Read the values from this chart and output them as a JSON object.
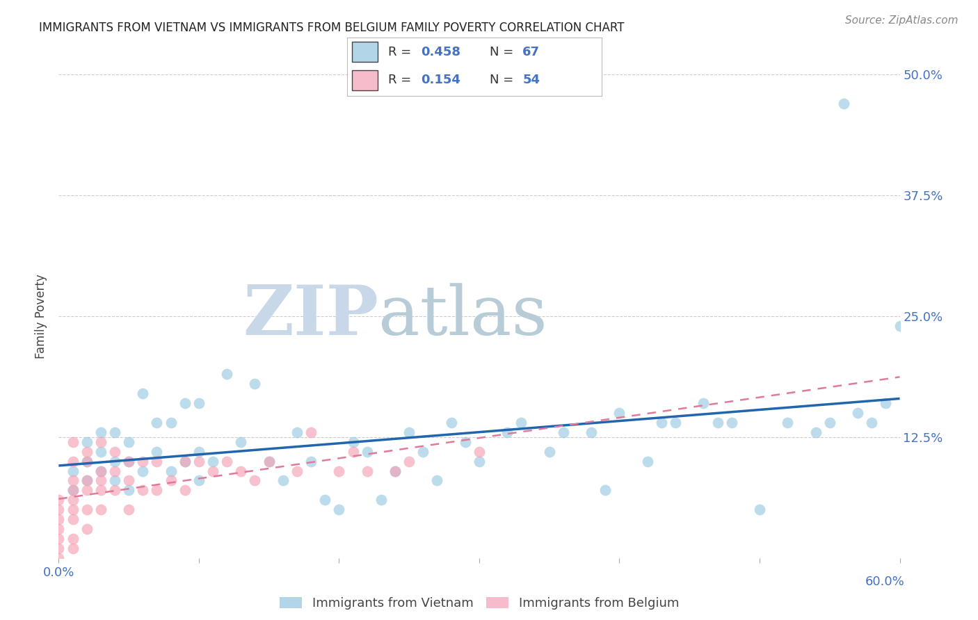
{
  "title": "IMMIGRANTS FROM VIETNAM VS IMMIGRANTS FROM BELGIUM FAMILY POVERTY CORRELATION CHART",
  "source": "Source: ZipAtlas.com",
  "ylabel": "Family Poverty",
  "xlim": [
    0.0,
    0.6
  ],
  "ylim": [
    0.0,
    0.5
  ],
  "yticks": [
    0.0,
    0.125,
    0.25,
    0.375,
    0.5
  ],
  "ytick_labels": [
    "",
    "12.5%",
    "25.0%",
    "37.5%",
    "50.0%"
  ],
  "xticks": [
    0.0,
    0.1,
    0.2,
    0.3,
    0.4,
    0.5,
    0.6
  ],
  "xtick_labels": [
    "0.0%",
    "",
    "",
    "",
    "",
    "",
    "60.0%"
  ],
  "vietnam_color": "#92c5de",
  "belgium_color": "#f4a0b5",
  "vietnam_R": "0.458",
  "vietnam_N": "67",
  "belgium_R": "0.154",
  "belgium_N": "54",
  "legend_label_vietnam": "Immigrants from Vietnam",
  "legend_label_belgium": "Immigrants from Belgium",
  "vietnam_scatter_x": [
    0.01,
    0.01,
    0.02,
    0.02,
    0.02,
    0.03,
    0.03,
    0.03,
    0.04,
    0.04,
    0.04,
    0.05,
    0.05,
    0.05,
    0.06,
    0.06,
    0.07,
    0.07,
    0.08,
    0.08,
    0.09,
    0.09,
    0.1,
    0.1,
    0.1,
    0.11,
    0.12,
    0.13,
    0.14,
    0.15,
    0.16,
    0.17,
    0.18,
    0.19,
    0.2,
    0.21,
    0.22,
    0.23,
    0.24,
    0.25,
    0.26,
    0.27,
    0.28,
    0.29,
    0.3,
    0.32,
    0.33,
    0.35,
    0.36,
    0.38,
    0.39,
    0.4,
    0.42,
    0.43,
    0.44,
    0.46,
    0.47,
    0.48,
    0.5,
    0.52,
    0.54,
    0.55,
    0.57,
    0.58,
    0.59,
    0.6,
    0.56
  ],
  "vietnam_scatter_y": [
    0.07,
    0.09,
    0.08,
    0.1,
    0.12,
    0.09,
    0.11,
    0.13,
    0.08,
    0.1,
    0.13,
    0.07,
    0.1,
    0.12,
    0.09,
    0.17,
    0.11,
    0.14,
    0.09,
    0.14,
    0.1,
    0.16,
    0.08,
    0.11,
    0.16,
    0.1,
    0.19,
    0.12,
    0.18,
    0.1,
    0.08,
    0.13,
    0.1,
    0.06,
    0.05,
    0.12,
    0.11,
    0.06,
    0.09,
    0.13,
    0.11,
    0.08,
    0.14,
    0.12,
    0.1,
    0.13,
    0.14,
    0.11,
    0.13,
    0.13,
    0.07,
    0.15,
    0.1,
    0.14,
    0.14,
    0.16,
    0.14,
    0.14,
    0.05,
    0.14,
    0.13,
    0.14,
    0.15,
    0.14,
    0.16,
    0.24,
    0.47
  ],
  "belgium_scatter_x": [
    0.0,
    0.0,
    0.0,
    0.0,
    0.0,
    0.0,
    0.0,
    0.01,
    0.01,
    0.01,
    0.01,
    0.01,
    0.01,
    0.01,
    0.01,
    0.01,
    0.02,
    0.02,
    0.02,
    0.02,
    0.02,
    0.02,
    0.03,
    0.03,
    0.03,
    0.03,
    0.03,
    0.04,
    0.04,
    0.04,
    0.05,
    0.05,
    0.05,
    0.06,
    0.06,
    0.07,
    0.07,
    0.08,
    0.09,
    0.09,
    0.1,
    0.11,
    0.12,
    0.13,
    0.14,
    0.15,
    0.17,
    0.18,
    0.2,
    0.21,
    0.22,
    0.24,
    0.25,
    0.3
  ],
  "belgium_scatter_y": [
    0.0,
    0.01,
    0.02,
    0.03,
    0.04,
    0.05,
    0.06,
    0.01,
    0.02,
    0.04,
    0.05,
    0.06,
    0.07,
    0.08,
    0.1,
    0.12,
    0.03,
    0.05,
    0.07,
    0.08,
    0.1,
    0.11,
    0.05,
    0.07,
    0.08,
    0.09,
    0.12,
    0.07,
    0.09,
    0.11,
    0.05,
    0.08,
    0.1,
    0.07,
    0.1,
    0.07,
    0.1,
    0.08,
    0.07,
    0.1,
    0.1,
    0.09,
    0.1,
    0.09,
    0.08,
    0.1,
    0.09,
    0.13,
    0.09,
    0.11,
    0.09,
    0.09,
    0.1,
    0.11
  ],
  "background_color": "#ffffff",
  "grid_color": "#cccccc",
  "tick_color": "#4472c4",
  "title_color": "#222222",
  "watermark_zip_color": "#c8d8e8",
  "watermark_atlas_color": "#b8ccd8"
}
